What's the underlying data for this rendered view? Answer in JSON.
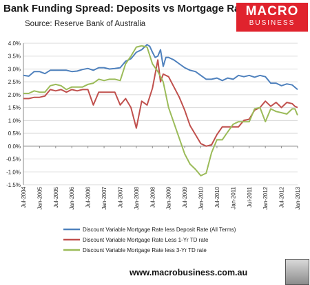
{
  "header": {
    "title": "Bank Funding Spread: Deposits vs Mortgage Rates",
    "source": "Source: Reserve Bank of Australia"
  },
  "logo": {
    "line1": "MACRO",
    "line2": "BUSINESS"
  },
  "footer": {
    "url": "www.macrobusiness.com.au"
  },
  "chart_data": {
    "type": "line",
    "title": "Bank Funding Spread: Deposits vs Mortgage Rates",
    "xlabel": "",
    "ylabel": "",
    "ylim": [
      -1.5,
      4.0
    ],
    "yticks": [
      "4.0%",
      "3.5%",
      "3.0%",
      "2.5%",
      "2.0%",
      "1.5%",
      "1.0%",
      "0.5%",
      "0.0%",
      "-0.5%",
      "-1.0%",
      "-1.5%"
    ],
    "ytick_values": [
      4.0,
      3.5,
      3.0,
      2.5,
      2.0,
      1.5,
      1.0,
      0.5,
      0.0,
      -0.5,
      -1.0,
      -1.5
    ],
    "xticks": [
      "Jul-2004",
      "Jan-2005",
      "Jul-2005",
      "Jan-2006",
      "Jul-2006",
      "Jan-2007",
      "Jul-2007",
      "Jan-2008",
      "Jul-2008",
      "Jan-2009",
      "Jul-2009",
      "Jan-2010",
      "Jul-2010",
      "Jan-2011",
      "Jul-2011",
      "Jan-2012",
      "Jul-2012",
      "Jan-2013"
    ],
    "xlim": [
      "Jul-2004",
      "Jan-2013"
    ],
    "grid": "horizontal",
    "legend": "bottom",
    "series": [
      {
        "name": "Discount Variable Mortgage Rate less Deposit Rate (All Terms)",
        "color": "#4f81bd",
        "points": [
          [
            "Jul-2004",
            2.75
          ],
          [
            "Sep-2004",
            2.72
          ],
          [
            "Nov-2004",
            2.9
          ],
          [
            "Jan-2005",
            2.9
          ],
          [
            "Mar-2005",
            2.82
          ],
          [
            "May-2005",
            2.95
          ],
          [
            "Jul-2005",
            2.95
          ],
          [
            "Sep-2005",
            2.95
          ],
          [
            "Nov-2005",
            2.95
          ],
          [
            "Jan-2006",
            2.9
          ],
          [
            "Mar-2006",
            2.92
          ],
          [
            "May-2006",
            2.98
          ],
          [
            "Jul-2006",
            3.02
          ],
          [
            "Sep-2006",
            2.95
          ],
          [
            "Nov-2006",
            3.05
          ],
          [
            "Jan-2007",
            3.05
          ],
          [
            "Mar-2007",
            3.0
          ],
          [
            "May-2007",
            3.02
          ],
          [
            "Jul-2007",
            3.05
          ],
          [
            "Sep-2007",
            3.3
          ],
          [
            "Nov-2007",
            3.4
          ],
          [
            "Jan-2008",
            3.65
          ],
          [
            "Mar-2008",
            3.75
          ],
          [
            "Apr-2008",
            3.85
          ],
          [
            "May-2008",
            3.95
          ],
          [
            "Jun-2008",
            3.88
          ],
          [
            "Jul-2008",
            3.65
          ],
          [
            "Aug-2008",
            3.45
          ],
          [
            "Sep-2008",
            3.5
          ],
          [
            "Oct-2008",
            3.75
          ],
          [
            "Nov-2008",
            3.1
          ],
          [
            "Dec-2008",
            3.45
          ],
          [
            "Jan-2009",
            3.45
          ],
          [
            "Mar-2009",
            3.35
          ],
          [
            "May-2009",
            3.2
          ],
          [
            "Jul-2009",
            3.05
          ],
          [
            "Sep-2009",
            2.95
          ],
          [
            "Nov-2009",
            2.9
          ],
          [
            "Jan-2010",
            2.75
          ],
          [
            "Mar-2010",
            2.6
          ],
          [
            "May-2010",
            2.6
          ],
          [
            "Jul-2010",
            2.65
          ],
          [
            "Sep-2010",
            2.55
          ],
          [
            "Nov-2010",
            2.65
          ],
          [
            "Jan-2011",
            2.6
          ],
          [
            "Mar-2011",
            2.75
          ],
          [
            "May-2011",
            2.7
          ],
          [
            "Jul-2011",
            2.75
          ],
          [
            "Sep-2011",
            2.68
          ],
          [
            "Nov-2011",
            2.75
          ],
          [
            "Jan-2012",
            2.7
          ],
          [
            "Mar-2012",
            2.45
          ],
          [
            "May-2012",
            2.45
          ],
          [
            "Jul-2012",
            2.35
          ],
          [
            "Sep-2012",
            2.42
          ],
          [
            "Nov-2012",
            2.38
          ],
          [
            "Jan-2013",
            2.2
          ]
        ]
      },
      {
        "name": "Discount Variable Mortgage Rate Less 1-Yr TD rate",
        "color": "#c0504d",
        "points": [
          [
            "Jul-2004",
            1.85
          ],
          [
            "Sep-2004",
            1.85
          ],
          [
            "Nov-2004",
            1.9
          ],
          [
            "Jan-2005",
            1.9
          ],
          [
            "Mar-2005",
            1.95
          ],
          [
            "May-2005",
            2.2
          ],
          [
            "Jul-2005",
            2.15
          ],
          [
            "Sep-2005",
            2.2
          ],
          [
            "Nov-2005",
            2.1
          ],
          [
            "Jan-2006",
            2.2
          ],
          [
            "Mar-2006",
            2.15
          ],
          [
            "May-2006",
            2.2
          ],
          [
            "Jul-2006",
            2.2
          ],
          [
            "Sep-2006",
            1.6
          ],
          [
            "Nov-2006",
            2.1
          ],
          [
            "Jan-2007",
            2.1
          ],
          [
            "Mar-2007",
            2.1
          ],
          [
            "May-2007",
            2.1
          ],
          [
            "Jul-2007",
            1.6
          ],
          [
            "Sep-2007",
            1.85
          ],
          [
            "Nov-2007",
            1.5
          ],
          [
            "Jan-2008",
            0.7
          ],
          [
            "Mar-2008",
            1.75
          ],
          [
            "May-2008",
            1.6
          ],
          [
            "Jul-2008",
            2.25
          ],
          [
            "Sep-2008",
            3.35
          ],
          [
            "Oct-2008",
            2.5
          ],
          [
            "Nov-2008",
            2.8
          ],
          [
            "Jan-2009",
            2.7
          ],
          [
            "Mar-2009",
            2.3
          ],
          [
            "May-2009",
            1.9
          ],
          [
            "Jul-2009",
            1.4
          ],
          [
            "Sep-2009",
            0.8
          ],
          [
            "Nov-2009",
            0.45
          ],
          [
            "Jan-2010",
            0.1
          ],
          [
            "Mar-2010",
            0.0
          ],
          [
            "May-2010",
            0.05
          ],
          [
            "Jul-2010",
            0.45
          ],
          [
            "Sep-2010",
            0.75
          ],
          [
            "Nov-2010",
            0.75
          ],
          [
            "Jan-2011",
            0.75
          ],
          [
            "Mar-2011",
            0.75
          ],
          [
            "May-2011",
            1.0
          ],
          [
            "Jul-2011",
            1.05
          ],
          [
            "Sep-2011",
            1.4
          ],
          [
            "Nov-2011",
            1.5
          ],
          [
            "Jan-2012",
            1.75
          ],
          [
            "Mar-2012",
            1.55
          ],
          [
            "May-2012",
            1.7
          ],
          [
            "Jul-2012",
            1.5
          ],
          [
            "Sep-2012",
            1.7
          ],
          [
            "Nov-2012",
            1.65
          ],
          [
            "Dec-2012",
            1.55
          ],
          [
            "Jan-2013",
            1.5
          ]
        ]
      },
      {
        "name": "Discount Variable Mortgage Rate less 3-Yr TD rate",
        "color": "#9bbb59",
        "points": [
          [
            "Jul-2004",
            2.05
          ],
          [
            "Sep-2004",
            2.05
          ],
          [
            "Nov-2004",
            2.15
          ],
          [
            "Jan-2005",
            2.1
          ],
          [
            "Mar-2005",
            2.1
          ],
          [
            "May-2005",
            2.35
          ],
          [
            "Jul-2005",
            2.4
          ],
          [
            "Sep-2005",
            2.35
          ],
          [
            "Nov-2005",
            2.2
          ],
          [
            "Jan-2006",
            2.3
          ],
          [
            "Mar-2006",
            2.3
          ],
          [
            "May-2006",
            2.3
          ],
          [
            "Jul-2006",
            2.4
          ],
          [
            "Sep-2006",
            2.45
          ],
          [
            "Nov-2006",
            2.6
          ],
          [
            "Jan-2007",
            2.55
          ],
          [
            "Mar-2007",
            2.6
          ],
          [
            "May-2007",
            2.6
          ],
          [
            "Jul-2007",
            2.55
          ],
          [
            "Sep-2007",
            3.2
          ],
          [
            "Nov-2007",
            3.5
          ],
          [
            "Jan-2008",
            3.85
          ],
          [
            "Mar-2008",
            3.9
          ],
          [
            "May-2008",
            3.85
          ],
          [
            "Jul-2008",
            3.2
          ],
          [
            "Sep-2008",
            2.9
          ],
          [
            "Nov-2008",
            2.5
          ],
          [
            "Jan-2009",
            1.5
          ],
          [
            "Mar-2009",
            0.9
          ],
          [
            "May-2009",
            0.3
          ],
          [
            "Jul-2009",
            -0.3
          ],
          [
            "Sep-2009",
            -0.7
          ],
          [
            "Nov-2009",
            -0.9
          ],
          [
            "Jan-2010",
            -1.15
          ],
          [
            "Mar-2010",
            -1.05
          ],
          [
            "May-2010",
            -0.25
          ],
          [
            "Jul-2010",
            0.25
          ],
          [
            "Sep-2010",
            0.25
          ],
          [
            "Nov-2010",
            0.55
          ],
          [
            "Jan-2011",
            0.85
          ],
          [
            "Mar-2011",
            0.95
          ],
          [
            "May-2011",
            0.95
          ],
          [
            "Jul-2011",
            0.95
          ],
          [
            "Sep-2011",
            1.45
          ],
          [
            "Nov-2011",
            1.5
          ],
          [
            "Jan-2012",
            0.95
          ],
          [
            "Mar-2012",
            1.45
          ],
          [
            "May-2012",
            1.35
          ],
          [
            "Jul-2012",
            1.3
          ],
          [
            "Sep-2012",
            1.25
          ],
          [
            "Nov-2012",
            1.45
          ],
          [
            "Dec-2012",
            1.45
          ],
          [
            "Jan-2013",
            1.2
          ]
        ]
      }
    ]
  }
}
